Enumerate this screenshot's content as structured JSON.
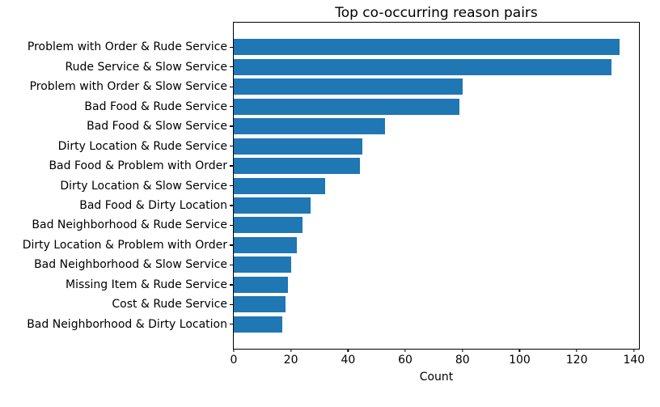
{
  "chart_data": {
    "type": "bar",
    "orientation": "horizontal",
    "title": "Top co-occurring reason pairs",
    "xlabel": "Count",
    "ylabel": "",
    "categories": [
      "Problem with Order & Rude Service",
      "Rude Service & Slow Service",
      "Problem with Order & Slow Service",
      "Bad Food & Rude Service",
      "Bad Food & Slow Service",
      "Dirty Location & Rude Service",
      "Bad Food & Problem with Order",
      "Dirty Location & Slow Service",
      "Bad Food & Dirty Location",
      "Bad Neighborhood & Rude Service",
      "Dirty Location & Problem with Order",
      "Bad Neighborhood & Slow Service",
      "Missing Item & Rude Service",
      "Cost & Rude Service",
      "Bad Neighborhood & Dirty Location"
    ],
    "values": [
      135,
      132,
      80,
      79,
      53,
      45,
      44,
      32,
      27,
      24,
      22,
      20,
      19,
      18,
      17
    ],
    "xticks": [
      0,
      20,
      40,
      60,
      80,
      100,
      120,
      140
    ],
    "xlim": [
      0,
      141.75
    ],
    "grid": false,
    "legend": false,
    "bar_color": "#1f77b4"
  }
}
